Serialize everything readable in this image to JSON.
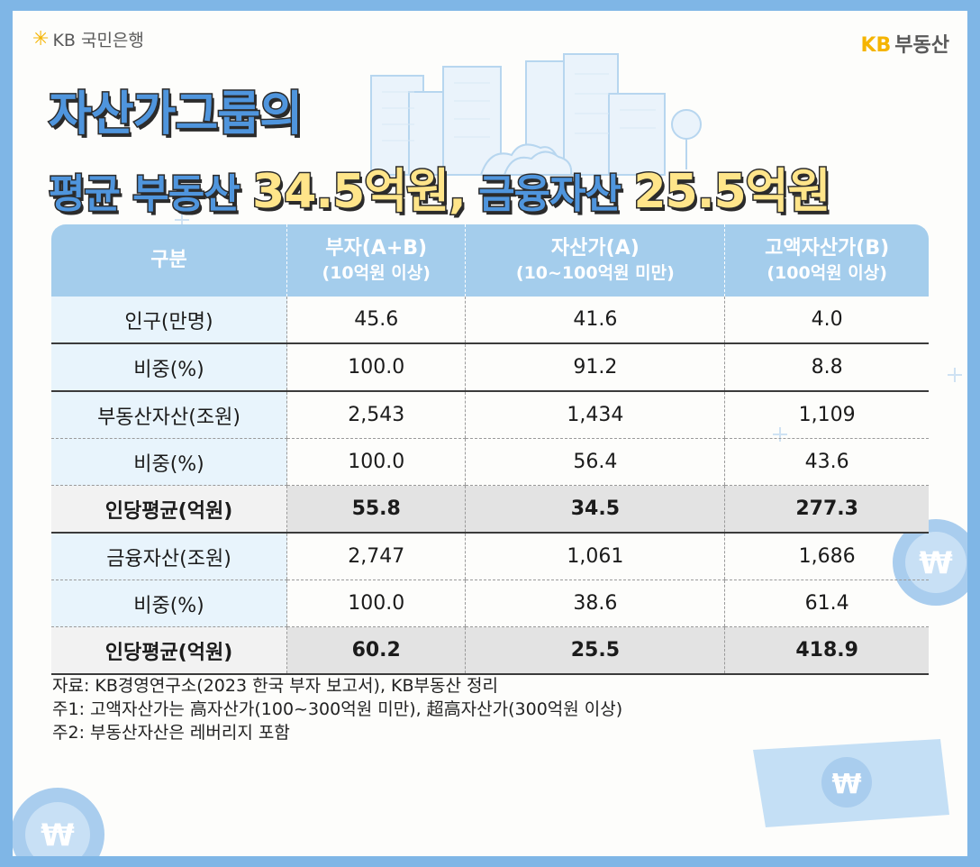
{
  "brand": {
    "logo_text": "KB 국민은행",
    "right_kb": "KB",
    "right_text": "부동산"
  },
  "title": {
    "line1": "자산가그룹의",
    "line2_a": "평균 부동산 ",
    "line2_b": "34.5억원,",
    "line2_c": " 금융자산 ",
    "line2_d": "25.5억원"
  },
  "colors": {
    "header_bg": "#a4cdec",
    "title_blue": "#4f95dd",
    "highlight": "#ffe58a",
    "frame": "#7fb6e6"
  },
  "chart_data": {
    "type": "table",
    "columns": [
      {
        "label": "구분",
        "sub": ""
      },
      {
        "label": "부자(A+B)",
        "sub": "(10억원 이상)"
      },
      {
        "label": "자산가(A)",
        "sub": "(10~100억원 미만)"
      },
      {
        "label": "고액자산가(B)",
        "sub": "(100억원 이상)"
      }
    ],
    "rows": [
      {
        "label": "인구(만명)",
        "values": [
          "45.6",
          "41.6",
          "4.0"
        ]
      },
      {
        "label": "비중(%)",
        "values": [
          "100.0",
          "91.2",
          "8.8"
        ]
      },
      {
        "label": "부동산자산(조원)",
        "values": [
          "2,543",
          "1,434",
          "1,109"
        ]
      },
      {
        "label": "비중(%)",
        "values": [
          "100.0",
          "56.4",
          "43.6"
        ]
      },
      {
        "label": "인당평균(억원)",
        "values": [
          "55.8",
          "34.5",
          "277.3"
        ]
      },
      {
        "label": "금융자산(조원)",
        "values": [
          "2,747",
          "1,061",
          "1,686"
        ]
      },
      {
        "label": "비중(%)",
        "values": [
          "100.0",
          "38.6",
          "61.4"
        ]
      },
      {
        "label": "인당평균(억원)",
        "values": [
          "60.2",
          "25.5",
          "418.9"
        ]
      }
    ]
  },
  "notes": {
    "source": "자료: KB경영연구소(2023 한국 부자 보고서), KB부동산 정리",
    "note1": "주1: 고액자산가는 高자산가(100~300억원 미만), 超高자산가(300억원 이상)",
    "note2": "주2: 부동산자산은 레버리지 포함"
  }
}
